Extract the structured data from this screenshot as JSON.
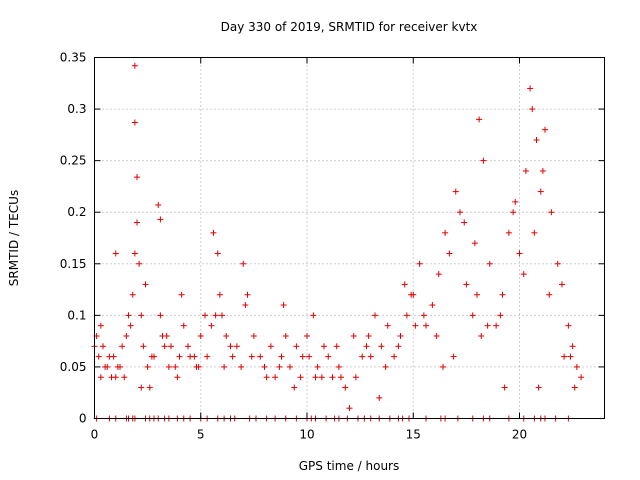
{
  "chart_data": {
    "type": "scatter",
    "title": "Day 330 of 2019, SRMTID for receiver kvtx",
    "xlabel": "GPS time / hours",
    "ylabel": "SRMTID / TECUs",
    "xlim": [
      0,
      24
    ],
    "ylim": [
      0,
      0.35
    ],
    "x_ticks": [
      0,
      5,
      10,
      15,
      20
    ],
    "x_tick_labels": [
      "0",
      "5",
      "10",
      "15",
      "20"
    ],
    "y_ticks": [
      0,
      0.05,
      0.1,
      0.15,
      0.2,
      0.25,
      0.3,
      0.35
    ],
    "y_tick_labels": [
      "0",
      "0.05",
      "0.1",
      "0.15",
      "0.2",
      "0.25",
      "0.3",
      "0.35"
    ],
    "grid": true,
    "marker": "+",
    "color": "#e00000",
    "series": [
      {
        "name": "SRMTID",
        "x": [
          0.1,
          0.2,
          0.3,
          0.4,
          0.5,
          0.7,
          1.0,
          1.1,
          1.3,
          1.5,
          1.6,
          1.8,
          1.9,
          1.9,
          2.0,
          2.0,
          2.1,
          2.2,
          2.3,
          2.5,
          2.7,
          3.0,
          3.1,
          3.1,
          3.4,
          3.6,
          3.8,
          4.0,
          4.2,
          4.4,
          4.8,
          5.0,
          5.3,
          5.5,
          5.6,
          5.8,
          5.9,
          6.0,
          6.2,
          6.5,
          6.7,
          7.0,
          7.2,
          7.5,
          7.8,
          8.0,
          8.3,
          8.5,
          8.8,
          9.0,
          9.2,
          9.5,
          9.8,
          10.0,
          10.3,
          10.5,
          10.8,
          11.0,
          11.2,
          11.5,
          11.8,
          12.0,
          12.3,
          12.6,
          12.9,
          13.2,
          13.5,
          13.8,
          14.1,
          14.4,
          14.7,
          15.0,
          15.3,
          15.6,
          15.9,
          16.2,
          16.5,
          16.7,
          17.0,
          17.2,
          17.5,
          17.8,
          18.0,
          18.1,
          18.3,
          18.6,
          18.9,
          19.2,
          19.5,
          19.8,
          20.0,
          20.3,
          20.5,
          20.6,
          20.8,
          21.0,
          21.2,
          21.5,
          21.8,
          22.0,
          22.3,
          22.5,
          22.7,
          22.9,
          0.0,
          0.3,
          0.6,
          0.9,
          1.2,
          1.4,
          1.7,
          2.4,
          2.8,
          3.2,
          3.5,
          3.9,
          4.5,
          4.9,
          5.2,
          6.4,
          6.9,
          7.4,
          8.1,
          8.7,
          9.4,
          10.1,
          10.7,
          11.4,
          12.2,
          13.0,
          13.7,
          14.3,
          14.9,
          15.5,
          16.1,
          16.9,
          17.4,
          18.5,
          19.1,
          19.7,
          20.2,
          21.4,
          22.1,
          22.6,
          1.9,
          3.3,
          5.7,
          8.9,
          11.6,
          14.6,
          17.9,
          21.1,
          20.7,
          19.3,
          16.4,
          13.4,
          9.7,
          7.1,
          4.7,
          2.6,
          0.8,
          1.0,
          2.2,
          4.1,
          6.1,
          10.4,
          12.8,
          15.1,
          18.2,
          20.9,
          22.4
        ],
        "y": [
          0.08,
          0.06,
          0.09,
          0.07,
          0.05,
          0.06,
          0.04,
          0.05,
          0.07,
          0.08,
          0.1,
          0.12,
          0.342,
          0.287,
          0.234,
          0.19,
          0.15,
          0.1,
          0.07,
          0.05,
          0.06,
          0.207,
          0.193,
          0.1,
          0.08,
          0.07,
          0.05,
          0.06,
          0.09,
          0.07,
          0.05,
          0.08,
          0.06,
          0.09,
          0.18,
          0.16,
          0.12,
          0.1,
          0.08,
          0.06,
          0.07,
          0.15,
          0.12,
          0.08,
          0.06,
          0.05,
          0.07,
          0.04,
          0.06,
          0.08,
          0.05,
          0.07,
          0.06,
          0.08,
          0.1,
          0.05,
          0.07,
          0.06,
          0.04,
          0.05,
          0.03,
          0.01,
          0.04,
          0.06,
          0.08,
          0.1,
          0.07,
          0.09,
          0.06,
          0.08,
          0.1,
          0.12,
          0.15,
          0.09,
          0.11,
          0.14,
          0.18,
          0.16,
          0.22,
          0.2,
          0.13,
          0.1,
          0.12,
          0.29,
          0.25,
          0.15,
          0.09,
          0.12,
          0.18,
          0.21,
          0.16,
          0.24,
          0.32,
          0.3,
          0.27,
          0.22,
          0.28,
          0.2,
          0.15,
          0.13,
          0.09,
          0.07,
          0.05,
          0.04,
          0.07,
          0.04,
          0.05,
          0.06,
          0.05,
          0.04,
          0.09,
          0.13,
          0.06,
          0.08,
          0.05,
          0.04,
          0.06,
          0.05,
          0.1,
          0.07,
          0.05,
          0.06,
          0.04,
          0.05,
          0.03,
          0.06,
          0.04,
          0.07,
          0.08,
          0.06,
          0.05,
          0.07,
          0.12,
          0.1,
          0.08,
          0.06,
          0.19,
          0.09,
          0.1,
          0.2,
          0.14,
          0.12,
          0.06,
          0.03,
          0.16,
          0.07,
          0.1,
          0.11,
          0.04,
          0.13,
          0.17,
          0.24,
          0.18,
          0.03,
          0.05,
          0.02,
          0.04,
          0.11,
          0.06,
          0.03,
          0.04,
          0.16,
          0.03,
          0.12,
          0.05,
          0.04,
          0.07,
          0.09,
          0.08,
          0.03,
          0.06
        ]
      }
    ],
    "zero_value_times": [
      0.1,
      0.7,
      1.0,
      1.5,
      1.6,
      1.8,
      1.9,
      2.4,
      2.6,
      2.8,
      3.0,
      3.3,
      3.5,
      3.9,
      4.2,
      4.5,
      5.0,
      5.3,
      5.8,
      6.1,
      6.4,
      6.6,
      7.3,
      7.6,
      8.1,
      8.5,
      9.0,
      9.5,
      10.0,
      10.2,
      10.4,
      10.9,
      11.3,
      11.5,
      11.9,
      12.4,
      12.7,
      13.0,
      13.4,
      13.9,
      14.3,
      14.5,
      14.8,
      15.6,
      16.3,
      16.5,
      17.1,
      17.8,
      18.3,
      18.6,
      19.5,
      20.2,
      20.7,
      21.0,
      21.2,
      21.7,
      22.3
    ]
  }
}
